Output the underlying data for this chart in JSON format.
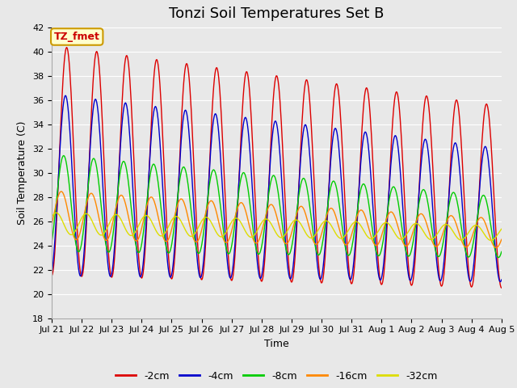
{
  "title": "Tonzi Soil Temperatures Set B",
  "xlabel": "Time",
  "ylabel": "Soil Temperature (C)",
  "ylim": [
    18,
    42
  ],
  "yticks": [
    18,
    20,
    22,
    24,
    26,
    28,
    30,
    32,
    34,
    36,
    38,
    40,
    42
  ],
  "annotation_text": "TZ_fmet",
  "annotation_box_color": "#ffffcc",
  "annotation_box_edgecolor": "#cc9900",
  "annotation_text_color": "#cc0000",
  "series": {
    "-2cm": {
      "color": "#dd0000",
      "linewidth": 1.0
    },
    "-4cm": {
      "color": "#0000cc",
      "linewidth": 1.0
    },
    "-8cm": {
      "color": "#00cc00",
      "linewidth": 1.0
    },
    "-16cm": {
      "color": "#ff8800",
      "linewidth": 1.0
    },
    "-32cm": {
      "color": "#dddd00",
      "linewidth": 1.0
    }
  },
  "tick_labels": [
    "Jul 21",
    "Jul 22",
    "Jul 23",
    "Jul 24",
    "Jul 25",
    "Jul 26",
    "Jul 27",
    "Jul 28",
    "Jul 29",
    "Jul 30",
    "Jul 31",
    "Aug 1",
    "Aug 2",
    "Aug 3",
    "Aug 4",
    "Aug 5"
  ],
  "n_days": 15,
  "background_color": "#e8e8e8",
  "plot_bg_color": "#e8e8e8",
  "grid_color": "#ffffff",
  "title_fontsize": 13,
  "axis_fontsize": 9,
  "tick_fontsize": 8,
  "legend_fontsize": 9
}
